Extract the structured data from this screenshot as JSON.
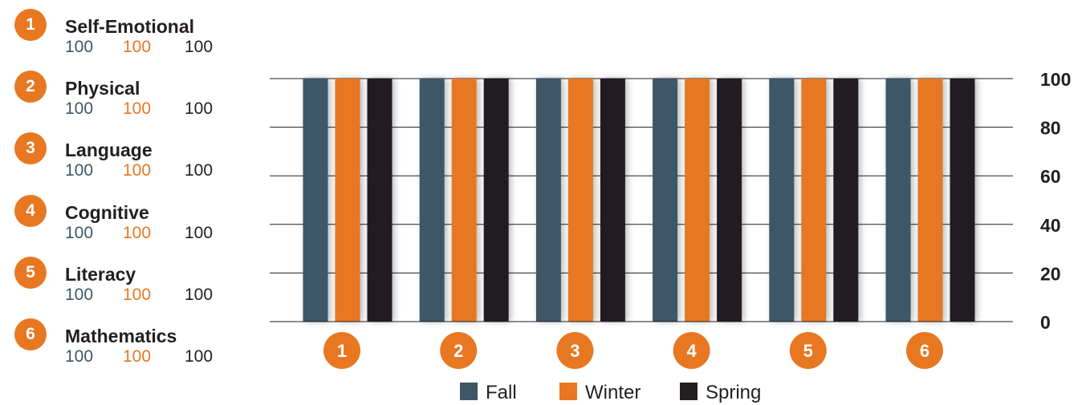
{
  "colors": {
    "fall": "#3e5767",
    "winter": "#e87722",
    "spring": "#231f20",
    "badge": "#e87722",
    "gridline": "#231f20"
  },
  "domains": [
    {
      "number": "1",
      "name": "Self-Emotional",
      "fall": "100",
      "winter": "100",
      "spring": "100"
    },
    {
      "number": "2",
      "name": "Physical",
      "fall": "100",
      "winter": "100",
      "spring": "100"
    },
    {
      "number": "3",
      "name": "Language",
      "fall": "100",
      "winter": "100",
      "spring": "100"
    },
    {
      "number": "4",
      "name": "Cognitive",
      "fall": "100",
      "winter": "100",
      "spring": "100"
    },
    {
      "number": "5",
      "name": "Literacy",
      "fall": "100",
      "winter": "100",
      "spring": "100"
    },
    {
      "number": "6",
      "name": "Mathematics",
      "fall": "100",
      "winter": "100",
      "spring": "100"
    }
  ],
  "chart_data": {
    "type": "bar",
    "categories": [
      "1",
      "2",
      "3",
      "4",
      "5",
      "6"
    ],
    "series": [
      {
        "name": "Fall",
        "values": [
          100,
          100,
          100,
          100,
          100,
          100
        ]
      },
      {
        "name": "Winter",
        "values": [
          100,
          100,
          100,
          100,
          100,
          100
        ]
      },
      {
        "name": "Spring",
        "values": [
          100,
          100,
          100,
          100,
          100,
          100
        ]
      }
    ],
    "yticks": [
      "0",
      "20",
      "40",
      "60",
      "80",
      "100"
    ],
    "ylim": [
      0,
      100
    ],
    "y_axis_position": "right",
    "grid": true,
    "legend_position": "bottom"
  }
}
